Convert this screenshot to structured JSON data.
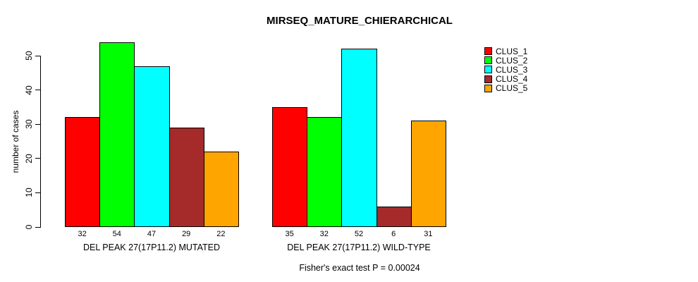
{
  "title": "MIRSEQ_MATURE_CHIERARCHICAL",
  "footnote": "Fisher's exact test P = 0.00024",
  "chart_data": {
    "type": "bar",
    "title": "MIRSEQ_MATURE_CHIERARCHICAL",
    "xlabel": "",
    "ylabel": "number of cases",
    "ylim": [
      0,
      50
    ],
    "yticks": [
      0,
      10,
      20,
      30,
      40,
      50
    ],
    "grid": false,
    "legend_position": "right",
    "bar_value_labels_shown": true,
    "categories": [
      "DEL PEAK 27(17P11.2) MUTATED",
      "DEL PEAK 27(17P11.2) WILD-TYPE"
    ],
    "series": [
      {
        "name": "CLUS_1",
        "color": "#FF0000",
        "values": [
          32,
          35
        ]
      },
      {
        "name": "CLUS_2",
        "color": "#00FF00",
        "values": [
          54,
          32
        ]
      },
      {
        "name": "CLUS_3",
        "color": "#00FFFF",
        "values": [
          47,
          52
        ]
      },
      {
        "name": "CLUS_4",
        "color": "#A52A2A",
        "values": [
          29,
          6
        ]
      },
      {
        "name": "CLUS_5",
        "color": "#FFA500",
        "values": [
          22,
          31
        ]
      }
    ],
    "annotation": "Fisher's exact test P = 0.00024"
  }
}
